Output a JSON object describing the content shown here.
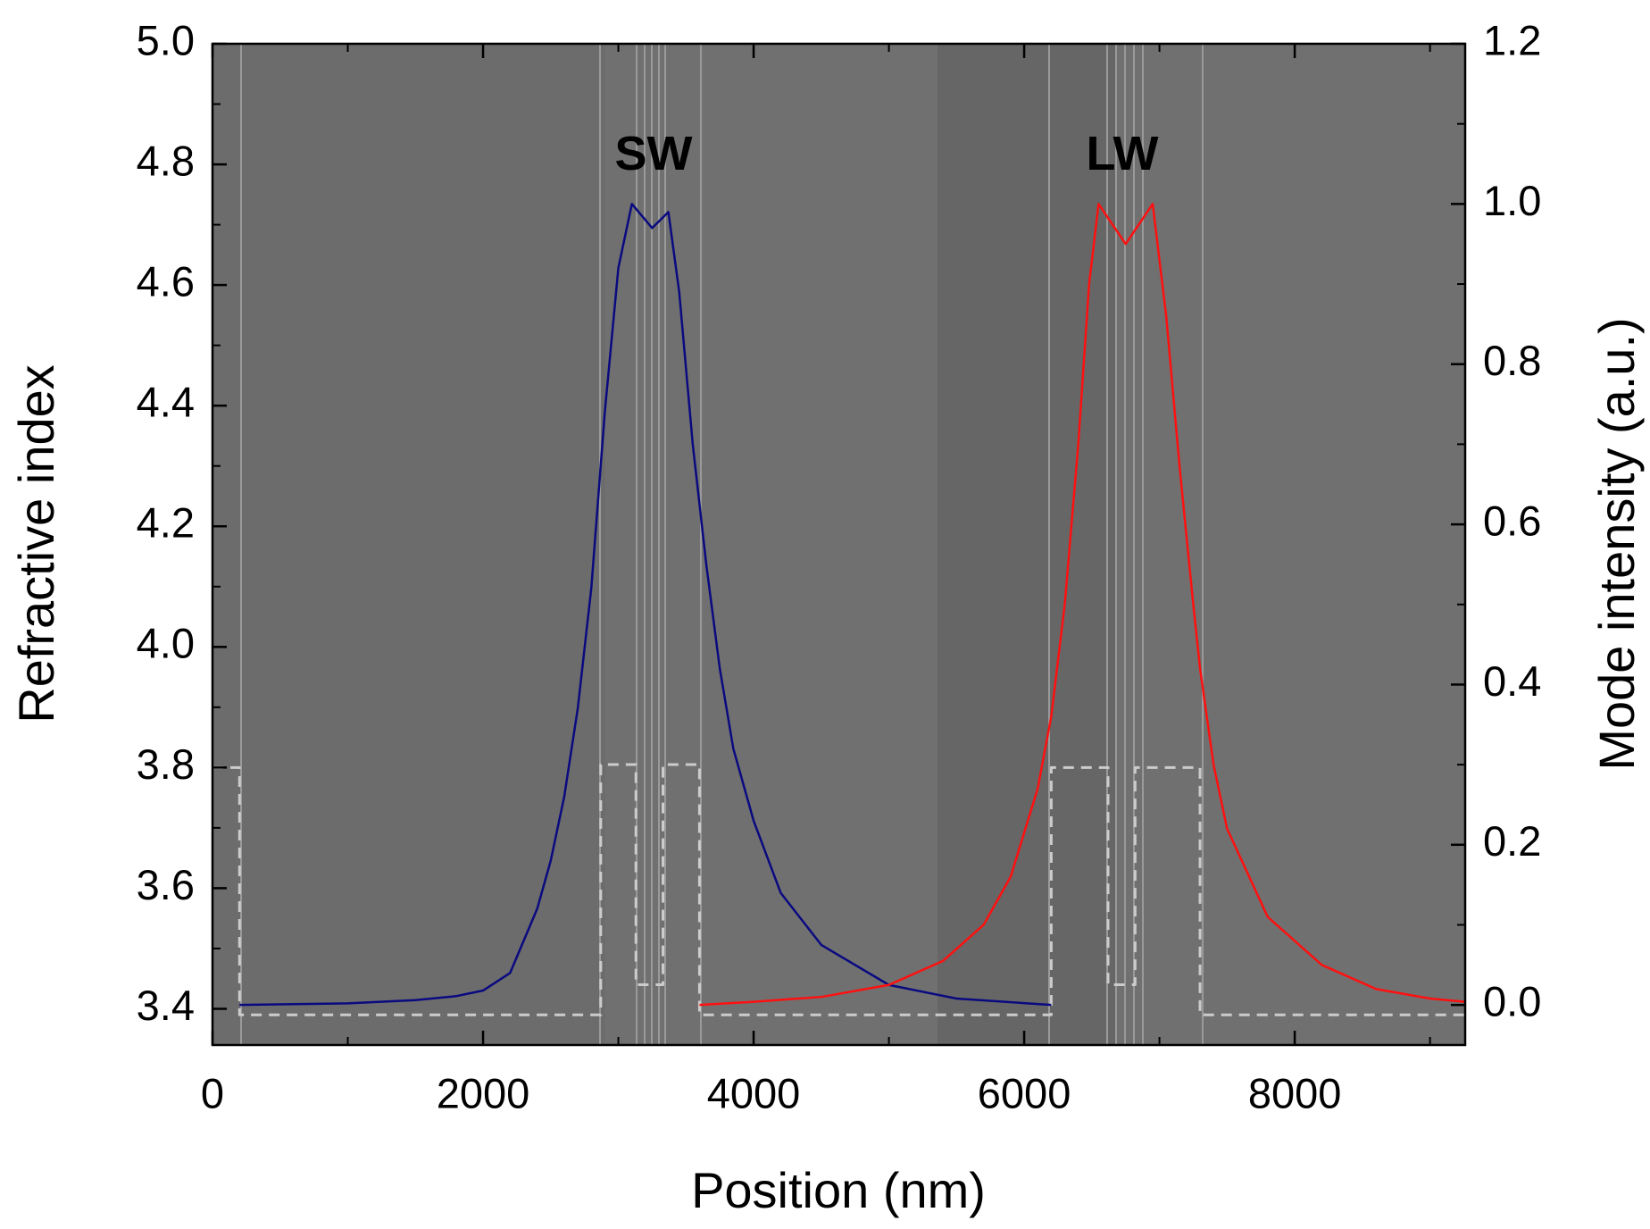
{
  "chart_data": {
    "type": "line",
    "x_label": "Position (nm)",
    "y_label": "Refractive index",
    "y2_label": "Mode intensity (a.u.)",
    "xlim": [
      0,
      9260
    ],
    "ylim": [
      3.34,
      5.0
    ],
    "y2lim": [
      -0.05,
      1.2
    ],
    "xticks": [
      0,
      2000,
      4000,
      6000,
      8000
    ],
    "yticks": [
      3.4,
      3.6,
      3.8,
      {
        "value": 4,
        "label": "4.0"
      },
      4.2,
      4.4,
      4.6,
      4.8,
      {
        "value": 5,
        "label": "5.0"
      }
    ],
    "y2ticks": [
      {
        "value": 0,
        "label": "0.0"
      },
      0.2,
      0.4,
      0.6,
      0.8,
      {
        "value": 1,
        "label": "1.0"
      },
      1.2
    ],
    "annotations": [
      {
        "text": "SW",
        "color": "#0a0a80"
      },
      {
        "text": "LW",
        "color": "#ff1010"
      }
    ],
    "series": [
      {
        "color": "#cccccc",
        "axis": "y",
        "dashed": true,
        "x": [
          0,
          200,
          200,
          2870,
          2870,
          3130,
          3130,
          3330,
          3330,
          3600,
          3600,
          6200,
          6200,
          6620,
          6620,
          6820,
          6820,
          7300,
          7300,
          9260
        ],
        "values": [
          3.8,
          3.8,
          3.39,
          3.39,
          3.805,
          3.805,
          3.44,
          3.44,
          3.805,
          3.805,
          3.39,
          3.39,
          3.8,
          3.8,
          3.44,
          3.44,
          3.8,
          3.8,
          3.39,
          3.39
        ]
      },
      {
        "color": "#0a0a80",
        "axis": "y2",
        "x": [
          200,
          1000,
          1500,
          1800,
          2000,
          2200,
          2400,
          2500,
          2600,
          2700,
          2800,
          2900,
          3000,
          3100,
          3250,
          3370,
          3450,
          3550,
          3650,
          3750,
          3850,
          4000,
          4200,
          4500,
          5000,
          5500,
          6200
        ],
        "values": [
          0,
          0.002,
          0.006,
          0.011,
          0.018,
          0.04,
          0.12,
          0.18,
          0.26,
          0.37,
          0.52,
          0.74,
          0.92,
          1.0,
          0.97,
          0.99,
          0.89,
          0.7,
          0.55,
          0.42,
          0.32,
          0.23,
          0.14,
          0.075,
          0.025,
          0.008,
          0.0
        ]
      },
      {
        "color": "#ff1010",
        "axis": "y2",
        "x": [
          3600,
          4000,
          4500,
          5000,
          5400,
          5700,
          5900,
          6100,
          6200,
          6300,
          6400,
          6480,
          6550,
          6750,
          6950,
          7050,
          7150,
          7250,
          7300,
          7400,
          7500,
          7800,
          8200,
          8600,
          9000,
          9260
        ],
        "values": [
          0,
          0.004,
          0.01,
          0.025,
          0.055,
          0.1,
          0.16,
          0.27,
          0.36,
          0.5,
          0.7,
          0.9,
          1.0,
          0.95,
          1.0,
          0.86,
          0.67,
          0.5,
          0.42,
          0.3,
          0.22,
          0.11,
          0.05,
          0.02,
          0.008,
          0.004
        ]
      }
    ]
  }
}
